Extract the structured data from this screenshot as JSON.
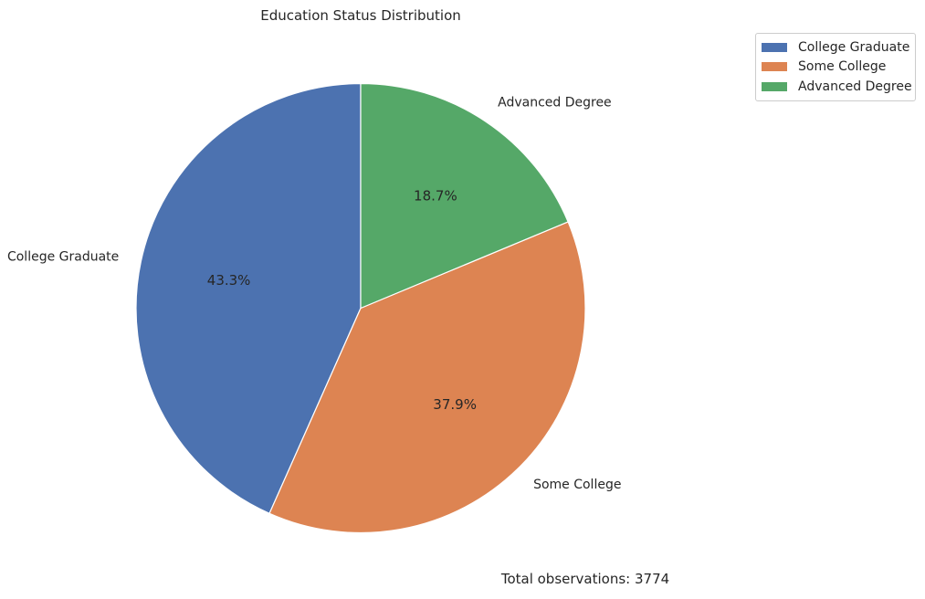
{
  "chart_data": {
    "type": "pie",
    "title": "Education Status Distribution",
    "categories": [
      "College Graduate",
      "Some College",
      "Advanced Degree"
    ],
    "values": [
      43.3,
      37.9,
      18.7
    ],
    "percent_labels": [
      "43.3%",
      "37.9%",
      "18.7%"
    ],
    "colors": [
      "#4c72b0",
      "#dd8452",
      "#55a868"
    ],
    "start_angle_deg": 90,
    "direction": "counterclockwise",
    "legend": {
      "position": "top-right",
      "entries": [
        "College Graduate",
        "Some College",
        "Advanced Degree"
      ]
    },
    "footnote": "Total observations: 3774"
  }
}
